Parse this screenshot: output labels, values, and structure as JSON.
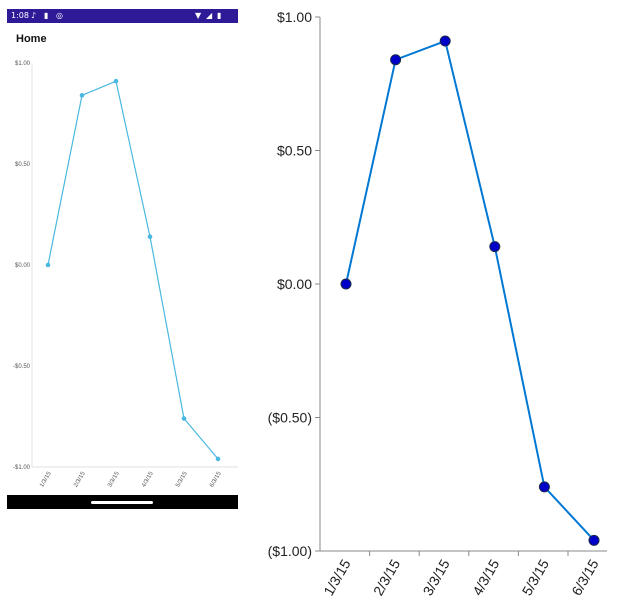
{
  "phone": {
    "status_time": "1:08",
    "status_icons_left": [
      "mic-icon",
      "sd-card-icon",
      "globe-icon"
    ],
    "status_icons_right": [
      "wifi-icon",
      "signal-icon",
      "battery-icon"
    ],
    "title": "Home",
    "accent_color": "#2e1a96"
  },
  "chart_data": [
    {
      "type": "line",
      "title": "",
      "xlabel": "",
      "ylabel": "",
      "categories": [
        "1/3/15",
        "2/3/15",
        "3/3/15",
        "4/3/15",
        "5/3/15",
        "6/3/15"
      ],
      "values": [
        0.0,
        0.84,
        0.91,
        0.14,
        -0.76,
        -0.96
      ],
      "ylim": [
        -1,
        1
      ],
      "ytick_values": [
        1,
        0.5,
        0,
        -0.5,
        -1
      ],
      "ytick_labels": [
        "$1.00",
        "$0.50",
        "$0.00",
        "-$0.50",
        "-$1.00"
      ],
      "line_color": "#4ab8e0",
      "marker_color": "#4ab8e0",
      "grid": false
    },
    {
      "type": "line",
      "title": "",
      "xlabel": "",
      "ylabel": "",
      "categories": [
        "1/3/15",
        "2/3/15",
        "3/3/15",
        "4/3/15",
        "5/3/15",
        "6/3/15"
      ],
      "values": [
        0.0,
        0.84,
        0.91,
        0.14,
        -0.76,
        -0.96
      ],
      "ylim": [
        -1,
        1
      ],
      "ytick_values": [
        1,
        0.5,
        0,
        -0.5,
        -1
      ],
      "ytick_labels": [
        "$1.00",
        "$0.50",
        "$0.00",
        "($0.50)",
        "($1.00)"
      ],
      "line_color": "#0078d4",
      "marker_color": "#0000c8",
      "grid": false
    }
  ]
}
